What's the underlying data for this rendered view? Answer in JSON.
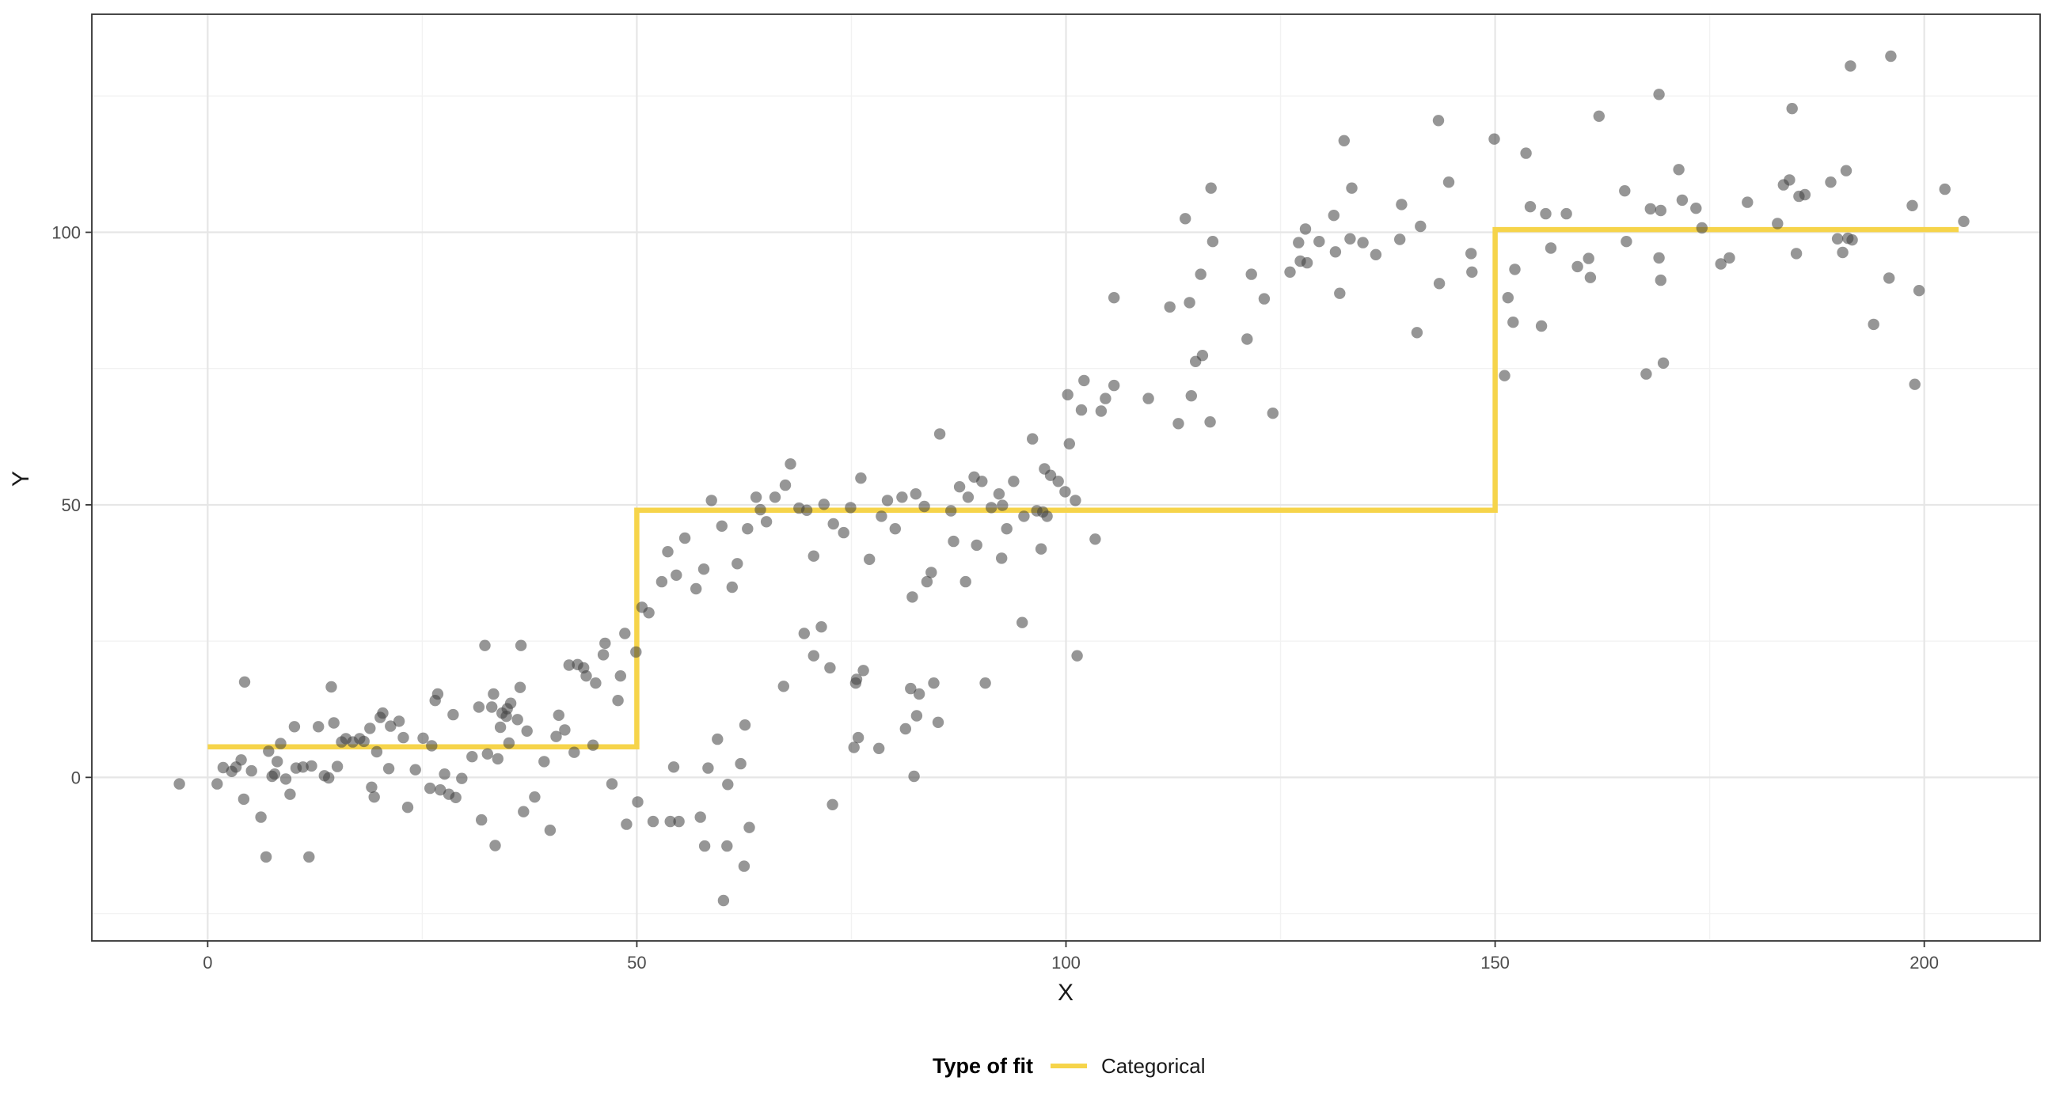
{
  "chart_data": {
    "type": "scatter",
    "xlabel": "X",
    "ylabel": "Y",
    "xlim": [
      -13.5,
      213.5
    ],
    "ylim": [
      -30,
      140
    ],
    "x_ticks": [
      0,
      50,
      100,
      150,
      200
    ],
    "y_ticks": [
      0,
      50,
      100
    ],
    "x_tick_labels": [
      "0",
      "50",
      "100",
      "150",
      "200"
    ],
    "y_tick_labels": [
      "0",
      "50",
      "100"
    ],
    "x_minor_grid": [
      25,
      75,
      125,
      175
    ],
    "y_minor_grid": [
      -25,
      25,
      75,
      125
    ],
    "grid": true,
    "legend": {
      "title": "Type of fit",
      "position": "bottom",
      "entries": [
        {
          "label": "Categorical",
          "color": "#F6D44A"
        }
      ]
    },
    "colors": {
      "points": "#3f3f3f",
      "fit_line": "#F6D44A",
      "grid_major": "#e6e6e6",
      "grid_minor": "#f2f2f2",
      "panel_border": "#333333"
    },
    "series": [
      {
        "type": "line",
        "step": true,
        "x": [
          0,
          50,
          50,
          150,
          150,
          204
        ],
        "y": [
          5.6,
          5.6,
          49,
          49,
          100.5,
          100.5
        ]
      },
      {
        "type": "scatter",
        "points": [
          [
            -3.3,
            -1.2
          ],
          [
            1.1,
            -1.2
          ],
          [
            1.8,
            1.8
          ],
          [
            2.8,
            1.1
          ],
          [
            3.3,
            1.9
          ],
          [
            3.9,
            3.2
          ],
          [
            4.2,
            -4.0
          ],
          [
            4.3,
            17.5
          ],
          [
            5.1,
            1.2
          ],
          [
            6.2,
            -7.3
          ],
          [
            6.8,
            -14.6
          ],
          [
            7.1,
            4.8
          ],
          [
            7.5,
            0.2
          ],
          [
            7.8,
            0.6
          ],
          [
            8.1,
            2.9
          ],
          [
            8.5,
            6.2
          ],
          [
            9.1,
            -0.3
          ],
          [
            9.6,
            -3.1
          ],
          [
            10.1,
            9.3
          ],
          [
            10.3,
            1.7
          ],
          [
            11.1,
            1.9
          ],
          [
            11.8,
            -14.6
          ],
          [
            12.1,
            2.1
          ],
          [
            12.9,
            9.3
          ],
          [
            13.6,
            0.3
          ],
          [
            14.1,
            -0.1
          ],
          [
            14.4,
            16.6
          ],
          [
            14.7,
            10.0
          ],
          [
            15.1,
            2.0
          ],
          [
            15.6,
            6.5
          ],
          [
            16.1,
            7.1
          ],
          [
            16.9,
            6.5
          ],
          [
            17.7,
            7.1
          ],
          [
            18.2,
            6.6
          ],
          [
            18.9,
            9.0
          ],
          [
            19.1,
            -1.8
          ],
          [
            19.4,
            -3.6
          ],
          [
            19.7,
            4.7
          ],
          [
            20.1,
            11.0
          ],
          [
            20.4,
            11.8
          ],
          [
            21.1,
            1.6
          ],
          [
            21.3,
            9.4
          ],
          [
            22.3,
            10.3
          ],
          [
            22.8,
            7.3
          ],
          [
            23.3,
            -5.5
          ],
          [
            24.2,
            1.4
          ],
          [
            25.1,
            7.2
          ],
          [
            25.9,
            -2.0
          ],
          [
            26.1,
            5.8
          ],
          [
            26.5,
            14.1
          ],
          [
            26.8,
            15.3
          ],
          [
            27.1,
            -2.3
          ],
          [
            27.6,
            0.6
          ],
          [
            28.1,
            -3.1
          ],
          [
            28.6,
            11.5
          ],
          [
            28.9,
            -3.7
          ],
          [
            29.6,
            -0.2
          ],
          [
            30.8,
            3.8
          ],
          [
            31.6,
            12.9
          ],
          [
            31.9,
            -7.8
          ],
          [
            32.3,
            24.2
          ],
          [
            32.6,
            4.3
          ],
          [
            33.1,
            12.9
          ],
          [
            33.3,
            15.3
          ],
          [
            33.5,
            -12.5
          ],
          [
            33.8,
            3.4
          ],
          [
            34.1,
            9.2
          ],
          [
            34.3,
            11.8
          ],
          [
            34.9,
            12.6
          ],
          [
            35.1,
            6.3
          ],
          [
            35.3,
            13.6
          ],
          [
            36.1,
            10.6
          ],
          [
            36.4,
            16.5
          ],
          [
            36.5,
            24.2
          ],
          [
            36.8,
            -6.3
          ],
          [
            37.2,
            8.5
          ],
          [
            38.1,
            -3.6
          ],
          [
            39.2,
            2.9
          ],
          [
            39.9,
            -9.7
          ],
          [
            40.6,
            7.5
          ],
          [
            40.9,
            11.4
          ],
          [
            41.6,
            8.7
          ],
          [
            42.1,
            20.6
          ],
          [
            42.7,
            4.6
          ],
          [
            43.1,
            20.7
          ],
          [
            43.8,
            20.1
          ],
          [
            44.1,
            18.6
          ],
          [
            44.9,
            5.9
          ],
          [
            45.2,
            17.3
          ],
          [
            46.1,
            22.5
          ],
          [
            46.3,
            24.6
          ],
          [
            47.1,
            -1.2
          ],
          [
            47.8,
            14.1
          ],
          [
            48.1,
            18.6
          ],
          [
            48.6,
            26.4
          ],
          [
            48.8,
            -8.6
          ],
          [
            49.9,
            23.0
          ],
          [
            50.1,
            -4.5
          ],
          [
            50.6,
            31.2
          ],
          [
            51.4,
            30.2
          ],
          [
            51.9,
            -8.1
          ],
          [
            52.9,
            35.9
          ],
          [
            53.6,
            41.4
          ],
          [
            53.9,
            -8.1
          ],
          [
            54.3,
            1.9
          ],
          [
            54.6,
            37.1
          ],
          [
            54.9,
            -8.1
          ],
          [
            55.6,
            43.9
          ],
          [
            56.9,
            34.6
          ],
          [
            57.4,
            -7.3
          ],
          [
            57.8,
            38.2
          ],
          [
            57.9,
            -12.6
          ],
          [
            58.3,
            1.7
          ],
          [
            58.7,
            50.8
          ],
          [
            59.4,
            7.0
          ],
          [
            59.9,
            46.1
          ],
          [
            60.1,
            -22.6
          ],
          [
            60.5,
            -12.6
          ],
          [
            60.6,
            -1.3
          ],
          [
            61.1,
            34.9
          ],
          [
            61.7,
            39.2
          ],
          [
            62.1,
            2.5
          ],
          [
            62.5,
            -16.3
          ],
          [
            62.6,
            9.6
          ],
          [
            62.9,
            45.6
          ],
          [
            63.1,
            -9.2
          ],
          [
            63.9,
            51.4
          ],
          [
            64.4,
            49.1
          ],
          [
            65.1,
            46.9
          ],
          [
            66.1,
            51.4
          ],
          [
            67.1,
            16.7
          ],
          [
            67.3,
            53.6
          ],
          [
            67.9,
            57.5
          ],
          [
            68.9,
            49.4
          ],
          [
            69.5,
            26.4
          ],
          [
            69.8,
            49.0
          ],
          [
            70.6,
            22.3
          ],
          [
            70.6,
            40.6
          ],
          [
            71.5,
            27.6
          ],
          [
            71.8,
            50.1
          ],
          [
            72.5,
            20.1
          ],
          [
            72.8,
            -5.0
          ],
          [
            72.9,
            46.5
          ],
          [
            74.1,
            44.9
          ],
          [
            74.9,
            49.5
          ],
          [
            75.3,
            5.5
          ],
          [
            75.5,
            17.3
          ],
          [
            75.6,
            18.0
          ],
          [
            75.8,
            7.3
          ],
          [
            76.1,
            54.9
          ],
          [
            76.4,
            19.6
          ],
          [
            77.1,
            40.0
          ],
          [
            78.2,
            5.3
          ],
          [
            78.5,
            47.9
          ],
          [
            79.2,
            50.8
          ],
          [
            80.1,
            45.6
          ],
          [
            80.9,
            51.4
          ],
          [
            81.3,
            8.9
          ],
          [
            81.9,
            16.3
          ],
          [
            82.1,
            33.1
          ],
          [
            82.3,
            0.2
          ],
          [
            82.5,
            52.0
          ],
          [
            82.6,
            11.3
          ],
          [
            82.9,
            15.3
          ],
          [
            83.5,
            49.7
          ],
          [
            83.8,
            35.9
          ],
          [
            84.3,
            37.6
          ],
          [
            84.6,
            17.3
          ],
          [
            85.1,
            10.1
          ],
          [
            85.3,
            63.0
          ],
          [
            86.6,
            48.9
          ],
          [
            86.9,
            43.3
          ],
          [
            87.6,
            53.3
          ],
          [
            88.3,
            35.9
          ],
          [
            88.6,
            51.4
          ],
          [
            89.3,
            55.1
          ],
          [
            89.6,
            42.6
          ],
          [
            90.2,
            54.3
          ],
          [
            90.6,
            17.3
          ],
          [
            91.3,
            49.5
          ],
          [
            92.2,
            52.0
          ],
          [
            92.5,
            40.2
          ],
          [
            92.6,
            49.9
          ],
          [
            93.1,
            45.6
          ],
          [
            93.9,
            54.3
          ],
          [
            94.9,
            28.4
          ],
          [
            95.1,
            47.9
          ],
          [
            96.1,
            62.1
          ],
          [
            96.6,
            48.9
          ],
          [
            97.1,
            41.9
          ],
          [
            97.3,
            48.7
          ],
          [
            97.5,
            56.6
          ],
          [
            97.8,
            47.9
          ],
          [
            98.2,
            55.4
          ],
          [
            99.1,
            54.3
          ],
          [
            99.9,
            52.4
          ],
          [
            100.2,
            70.2
          ],
          [
            100.4,
            61.2
          ],
          [
            101.1,
            50.8
          ],
          [
            101.3,
            22.3
          ],
          [
            101.8,
            67.4
          ],
          [
            102.1,
            72.8
          ],
          [
            103.4,
            43.7
          ],
          [
            104.1,
            67.2
          ],
          [
            104.6,
            69.5
          ],
          [
            105.6,
            71.9
          ],
          [
            105.6,
            88.0
          ],
          [
            109.6,
            69.5
          ],
          [
            112.1,
            86.3
          ],
          [
            113.1,
            64.9
          ],
          [
            113.9,
            102.5
          ],
          [
            114.4,
            87.1
          ],
          [
            114.6,
            70.0
          ],
          [
            115.1,
            76.3
          ],
          [
            115.7,
            92.3
          ],
          [
            115.9,
            77.4
          ],
          [
            116.8,
            65.2
          ],
          [
            116.9,
            108.1
          ],
          [
            117.1,
            98.3
          ],
          [
            121.1,
            80.4
          ],
          [
            121.6,
            92.3
          ],
          [
            123.1,
            87.8
          ],
          [
            124.1,
            66.8
          ],
          [
            126.1,
            92.7
          ],
          [
            127.1,
            98.1
          ],
          [
            127.3,
            94.7
          ],
          [
            127.9,
            100.6
          ],
          [
            128.1,
            94.4
          ],
          [
            129.5,
            98.3
          ],
          [
            131.2,
            103.1
          ],
          [
            131.4,
            96.4
          ],
          [
            131.9,
            88.8
          ],
          [
            132.4,
            116.8
          ],
          [
            133.1,
            98.8
          ],
          [
            133.3,
            108.1
          ],
          [
            134.6,
            98.1
          ],
          [
            136.1,
            95.9
          ],
          [
            138.9,
            98.7
          ],
          [
            139.1,
            105.1
          ],
          [
            140.9,
            81.6
          ],
          [
            141.3,
            101.1
          ],
          [
            143.4,
            120.5
          ],
          [
            143.5,
            90.6
          ],
          [
            144.6,
            109.2
          ],
          [
            147.2,
            96.1
          ],
          [
            147.3,
            92.7
          ],
          [
            149.9,
            117.1
          ],
          [
            151.1,
            73.7
          ],
          [
            151.5,
            88.0
          ],
          [
            152.1,
            83.5
          ],
          [
            152.3,
            93.2
          ],
          [
            153.6,
            114.5
          ],
          [
            154.1,
            104.7
          ],
          [
            155.4,
            82.8
          ],
          [
            155.9,
            103.4
          ],
          [
            156.5,
            97.1
          ],
          [
            158.3,
            103.4
          ],
          [
            159.6,
            93.7
          ],
          [
            160.9,
            95.2
          ],
          [
            161.1,
            91.7
          ],
          [
            162.1,
            121.3
          ],
          [
            165.1,
            107.6
          ],
          [
            165.3,
            98.3
          ],
          [
            167.6,
            74.0
          ],
          [
            168.1,
            104.3
          ],
          [
            169.1,
            95.3
          ],
          [
            169.1,
            125.3
          ],
          [
            169.3,
            104.0
          ],
          [
            169.3,
            91.2
          ],
          [
            169.6,
            76.0
          ],
          [
            171.4,
            111.5
          ],
          [
            171.8,
            105.9
          ],
          [
            173.4,
            104.4
          ],
          [
            174.1,
            100.8
          ],
          [
            176.3,
            94.2
          ],
          [
            177.3,
            95.3
          ],
          [
            179.4,
            105.5
          ],
          [
            182.9,
            101.6
          ],
          [
            183.6,
            108.7
          ],
          [
            184.3,
            109.6
          ],
          [
            184.6,
            122.7
          ],
          [
            185.1,
            96.1
          ],
          [
            185.4,
            106.6
          ],
          [
            186.1,
            106.9
          ],
          [
            189.1,
            109.2
          ],
          [
            189.9,
            98.8
          ],
          [
            190.5,
            96.3
          ],
          [
            190.9,
            111.3
          ],
          [
            191.1,
            98.9
          ],
          [
            191.4,
            130.5
          ],
          [
            191.6,
            98.6
          ],
          [
            194.1,
            83.1
          ],
          [
            195.9,
            91.6
          ],
          [
            196.1,
            132.3
          ],
          [
            198.6,
            104.9
          ],
          [
            198.9,
            72.1
          ],
          [
            199.4,
            89.3
          ],
          [
            202.4,
            107.9
          ],
          [
            204.6,
            102.0
          ],
          [
            34.8,
            11.2
          ]
        ]
      }
    ]
  }
}
